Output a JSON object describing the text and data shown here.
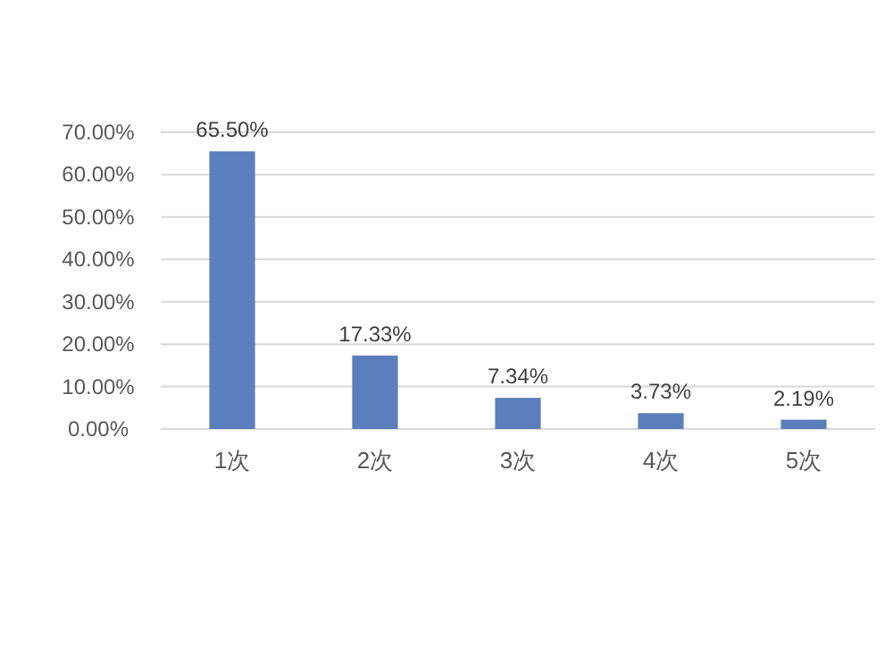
{
  "chart_data": {
    "type": "bar",
    "categories": [
      "1次",
      "2次",
      "3次",
      "4次",
      "5次"
    ],
    "values": [
      65.5,
      17.33,
      7.34,
      3.73,
      2.19
    ],
    "value_labels": [
      "65.50%",
      "17.33%",
      "7.34%",
      "3.73%",
      "2.19%"
    ],
    "color": "#5b7fbc",
    "ylim": [
      0,
      70
    ],
    "yticks": [
      {
        "value": 0,
        "label": "0.00%"
      },
      {
        "value": 10,
        "label": "10.00%"
      },
      {
        "value": 20,
        "label": "20.00%"
      },
      {
        "value": 30,
        "label": "30.00%"
      },
      {
        "value": 40,
        "label": "40.00%"
      },
      {
        "value": 50,
        "label": "50.00%"
      },
      {
        "value": 60,
        "label": "60.00%"
      },
      {
        "value": 70,
        "label": "70.00%"
      }
    ],
    "grid": "y"
  }
}
